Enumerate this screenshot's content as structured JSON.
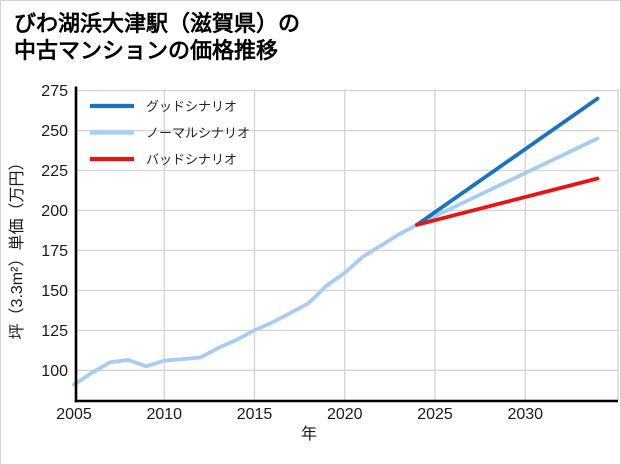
{
  "header": {
    "title_line1": "びわ湖浜大津駅（滋賀県）の",
    "title_line2": "中古マンションの価格推移"
  },
  "colors": {
    "good_scenario": "#1774c0",
    "normal_scenario": "#a8cdf2",
    "bad_scenario": "#e81414",
    "gridline": "#d4d4d4",
    "spine": "#000000",
    "tick_text": "#1a1a1a",
    "legend_text": "#262626",
    "background": "#ffffff"
  },
  "chart_data": {
    "type": "line",
    "title": "びわ湖浜大津駅（滋賀県）の中古マンションの価格推移",
    "xlabel": "年",
    "ylabel": "坪（3.3m²）単価（万円）",
    "x_ticks": [
      2005,
      2010,
      2015,
      2020,
      2025,
      2030
    ],
    "y_ticks": [
      100,
      125,
      150,
      175,
      200,
      225,
      250,
      275
    ],
    "xlim": [
      2004.9,
      2035.1
    ],
    "ylim": [
      81,
      278
    ],
    "grid": true,
    "legend_position": "upper-left-inside",
    "series": [
      {
        "key": "good-scenario",
        "name": "グッドシナリオ",
        "color": "#1774c0",
        "x": [
          2024,
          2034
        ],
        "values": [
          191,
          270
        ]
      },
      {
        "key": "normal-scenario",
        "name": "ノーマルシナリオ",
        "color": "#a8cdf2",
        "x": [
          2005,
          2006,
          2007,
          2008,
          2009,
          2010,
          2011,
          2012,
          2013,
          2014,
          2015,
          2016,
          2017,
          2018,
          2019,
          2020,
          2021,
          2022,
          2023,
          2024,
          2034
        ],
        "values": [
          91,
          98.5,
          105,
          106.5,
          102.5,
          106,
          107,
          108,
          114,
          119,
          125,
          130,
          136,
          142,
          153,
          161,
          171,
          178,
          185,
          191,
          245
        ]
      },
      {
        "key": "bad-scenario",
        "name": "バッドシナリオ",
        "color": "#e81414",
        "x": [
          2024,
          2034
        ],
        "values": [
          191,
          220
        ]
      }
    ]
  }
}
